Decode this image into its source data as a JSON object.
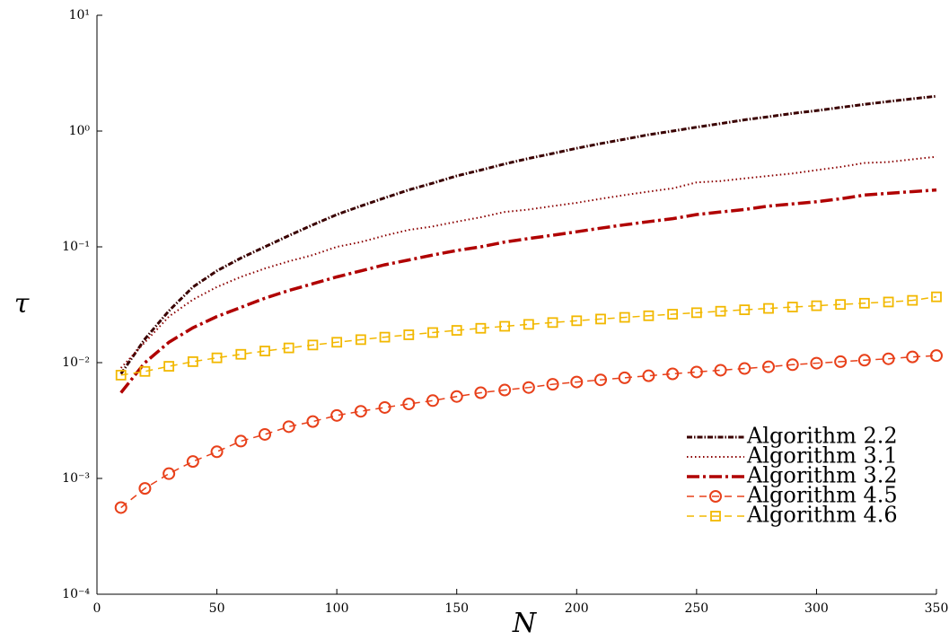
{
  "chart_data": {
    "type": "line",
    "xlabel": "N",
    "ylabel": "τ",
    "x": [
      10,
      20,
      30,
      40,
      50,
      60,
      70,
      80,
      90,
      100,
      110,
      120,
      130,
      140,
      150,
      160,
      170,
      180,
      190,
      200,
      210,
      220,
      230,
      240,
      250,
      260,
      270,
      280,
      290,
      300,
      310,
      320,
      330,
      340,
      350
    ],
    "xlim": [
      0,
      350
    ],
    "xticks": [
      0,
      50,
      100,
      150,
      200,
      250,
      300,
      350
    ],
    "ylim": [
      0.0001,
      10
    ],
    "log_y": true,
    "yticks": [
      {
        "value": 10,
        "label": "10¹"
      },
      {
        "value": 1,
        "label": "10⁰"
      },
      {
        "value": 0.1,
        "label": "10⁻¹"
      },
      {
        "value": 0.01,
        "label": "10⁻²"
      },
      {
        "value": 0.001,
        "label": "10⁻³"
      },
      {
        "value": 0.0001,
        "label": "10⁻⁴"
      }
    ],
    "grid": false,
    "legend": "lower right",
    "series": [
      {
        "name": "Algorithm 2.2",
        "color": "#3a0000",
        "linestyle": "dashdotdense",
        "marker": "none",
        "values": [
          0.008,
          0.016,
          0.028,
          0.045,
          0.062,
          0.08,
          0.1,
          0.125,
          0.155,
          0.19,
          0.225,
          0.265,
          0.31,
          0.355,
          0.41,
          0.46,
          0.52,
          0.58,
          0.64,
          0.71,
          0.78,
          0.85,
          0.93,
          1.0,
          1.08,
          1.16,
          1.25,
          1.33,
          1.42,
          1.5,
          1.6,
          1.7,
          1.8,
          1.9,
          2.0
        ]
      },
      {
        "name": "Algorithm 3.1",
        "color": "#8b0000",
        "linestyle": "dotted",
        "marker": "none",
        "values": [
          0.009,
          0.015,
          0.025,
          0.035,
          0.045,
          0.055,
          0.065,
          0.075,
          0.085,
          0.1,
          0.11,
          0.125,
          0.14,
          0.15,
          0.165,
          0.18,
          0.2,
          0.21,
          0.225,
          0.24,
          0.26,
          0.28,
          0.3,
          0.32,
          0.36,
          0.37,
          0.39,
          0.41,
          0.43,
          0.46,
          0.49,
          0.53,
          0.54,
          0.57,
          0.6
        ]
      },
      {
        "name": "Algorithm 3.2",
        "color": "#b00000",
        "linestyle": "dashdot",
        "marker": "none",
        "values": [
          0.0055,
          0.01,
          0.015,
          0.02,
          0.025,
          0.03,
          0.036,
          0.042,
          0.048,
          0.055,
          0.062,
          0.07,
          0.077,
          0.085,
          0.093,
          0.1,
          0.11,
          0.118,
          0.126,
          0.135,
          0.145,
          0.155,
          0.165,
          0.175,
          0.19,
          0.2,
          0.21,
          0.225,
          0.235,
          0.245,
          0.26,
          0.28,
          0.29,
          0.3,
          0.31
        ]
      },
      {
        "name": "Algorithm 4.5",
        "color": "#e8401a",
        "linestyle": "dashed",
        "marker": "circle",
        "values": [
          0.00056,
          0.00082,
          0.0011,
          0.0014,
          0.0017,
          0.0021,
          0.0024,
          0.0028,
          0.0031,
          0.0035,
          0.0038,
          0.0041,
          0.0044,
          0.0047,
          0.0051,
          0.0055,
          0.0058,
          0.0061,
          0.0065,
          0.0068,
          0.0071,
          0.0074,
          0.0077,
          0.008,
          0.0083,
          0.0086,
          0.0089,
          0.0092,
          0.0096,
          0.0099,
          0.0102,
          0.0105,
          0.0108,
          0.0112,
          0.0115
        ]
      },
      {
        "name": "Algorithm 4.6",
        "color": "#f2b800",
        "linestyle": "dashed",
        "marker": "square",
        "values": [
          0.0078,
          0.0084,
          0.0093,
          0.0102,
          0.011,
          0.0118,
          0.0126,
          0.0134,
          0.0142,
          0.015,
          0.0158,
          0.0166,
          0.0174,
          0.0182,
          0.019,
          0.0198,
          0.0206,
          0.0214,
          0.0222,
          0.023,
          0.0238,
          0.0246,
          0.0254,
          0.0262,
          0.027,
          0.0278,
          0.0286,
          0.0294,
          0.0302,
          0.031,
          0.0318,
          0.0326,
          0.0334,
          0.0345,
          0.037
        ]
      }
    ]
  }
}
